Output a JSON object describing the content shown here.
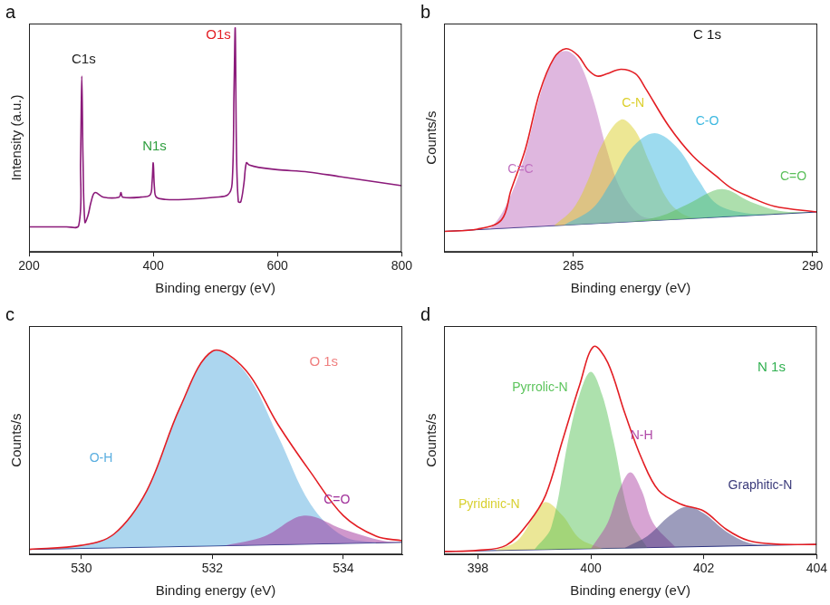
{
  "chart_data": [
    {
      "type": "line",
      "title": "a",
      "x_label": "Binding energy (eV)",
      "y_label": "Intensity (a.u.)",
      "xlim": [
        200,
        800
      ],
      "xticks": [
        200,
        400,
        600,
        800
      ],
      "ylim": [
        0,
        100
      ],
      "tick_labels": "x",
      "grid": false,
      "series": [
        {
          "type": "line",
          "color": "#8b1a7a",
          "x": [
            200,
            230,
            260,
            280,
            283,
            285,
            287,
            290,
            295,
            300,
            306,
            320,
            345,
            348,
            351,
            380,
            395,
            398,
            400,
            402,
            405,
            420,
            450,
            500,
            520,
            527,
            530,
            532,
            534,
            537,
            541,
            546,
            550,
            555,
            570,
            600,
            650,
            700,
            750,
            800
          ],
          "values": [
            11,
            11,
            11,
            11.5,
            40,
            77,
            40,
            13,
            16,
            22,
            26,
            24,
            24,
            26,
            24,
            24,
            25,
            30,
            39,
            28,
            24,
            23,
            23,
            24,
            25,
            30,
            70,
            98,
            45,
            22,
            22,
            30,
            39,
            38,
            37,
            36,
            35,
            33,
            31,
            29
          ]
        }
      ],
      "annotations": [
        {
          "text": "C1s",
          "x": 288,
          "y": 84,
          "color": "#222222"
        },
        {
          "text": "N1s",
          "x": 402,
          "y": 46,
          "color": "#2e9e3e"
        },
        {
          "text": "O1s",
          "x": 505,
          "y": 95,
          "color": "#e31e24"
        }
      ]
    },
    {
      "type": "line",
      "title": "b",
      "x_label": "Binding energy (eV)",
      "y_label": "Counts/s",
      "xlim": [
        282.3,
        290.1
      ],
      "xticks": [
        285,
        290
      ],
      "ylim": [
        0,
        100
      ],
      "tick_labels": "x",
      "grid": false,
      "series": [
        {
          "type": "line",
          "color": "#e31e24",
          "x": [
            282.3,
            283.0,
            283.5,
            283.7,
            284.0,
            284.3,
            284.6,
            284.85,
            285.1,
            285.3,
            285.5,
            285.7,
            286.0,
            286.3,
            286.5,
            287.0,
            287.5,
            288.0,
            288.3,
            288.7,
            289.2,
            290.1
          ],
          "values": [
            9,
            10,
            14,
            27,
            45,
            70,
            85,
            89,
            86,
            80,
            77,
            78,
            80,
            78,
            72,
            55,
            42,
            33,
            28,
            24,
            20,
            17.5
          ]
        },
        {
          "type": "area",
          "name": "C=C",
          "color": "#c070c0",
          "name_at": [
            283.9,
            36
          ],
          "x": [
            283.0,
            283.3,
            283.7,
            284.0,
            284.3,
            284.6,
            284.85,
            285.1,
            285.4,
            285.7,
            286.0,
            286.4,
            286.8,
            287.2
          ],
          "values": [
            9.8,
            11,
            25,
            43,
            68,
            85,
            88,
            84,
            68,
            45,
            27,
            16,
            14.5,
            14.3
          ]
        },
        {
          "type": "area",
          "name": "C-N",
          "color": "#dccf2a",
          "name_at": [
            286.25,
            65
          ],
          "x": [
            284.6,
            285.0,
            285.3,
            285.6,
            286.0,
            286.3,
            286.6,
            287.0,
            287.4,
            287.8
          ],
          "values": [
            11.5,
            19,
            31,
            47,
            58,
            53,
            39,
            22,
            15.5,
            15.0
          ]
        },
        {
          "type": "area",
          "name": "C-O",
          "color": "#3cb8e0",
          "name_at": [
            287.8,
            57
          ],
          "x": [
            284.8,
            285.4,
            285.8,
            286.2,
            286.7,
            287.2,
            287.6,
            288.0,
            288.6,
            289.2
          ],
          "values": [
            11.7,
            19,
            31,
            45,
            52,
            45,
            32,
            21,
            17,
            16.5
          ]
        },
        {
          "type": "area",
          "name": "C=O",
          "color": "#5cc05c",
          "name_at": [
            289.6,
            33
          ],
          "x": [
            286.2,
            286.8,
            287.4,
            288.1,
            288.7,
            289.3,
            290.0
          ],
          "values": [
            13.3,
            15.5,
            21,
            27.5,
            22,
            18,
            17.4
          ]
        }
      ],
      "baseline": {
        "color": "#283080",
        "x": [
          282.3,
          290.1
        ],
        "values": [
          9,
          17.5
        ]
      },
      "annotations": [
        {
          "text": "C 1s",
          "x": 287.8,
          "y": 95,
          "color": "#111111"
        }
      ]
    },
    {
      "type": "line",
      "title": "c",
      "x_label": "Binding energy (eV)",
      "y_label": "Counts/s",
      "xlim": [
        529.2,
        534.9
      ],
      "xticks": [
        530,
        532,
        534
      ],
      "ylim": [
        0,
        100
      ],
      "tick_labels": "x",
      "grid": false,
      "series": [
        {
          "type": "line",
          "color": "#e31e24",
          "x": [
            529.2,
            530.0,
            530.5,
            531.0,
            531.5,
            532.0,
            532.5,
            533.0,
            533.5,
            534.0,
            534.5,
            534.9
          ],
          "values": [
            2.2,
            4,
            9,
            28,
            64,
            89,
            81,
            57,
            36,
            17,
            8,
            6
          ]
        },
        {
          "type": "area",
          "name": "O-H",
          "color": "#5aaee0",
          "name_at": [
            530.3,
            42
          ],
          "x": [
            529.5,
            530.0,
            530.5,
            531.0,
            531.5,
            532.0,
            532.5,
            533.0,
            533.5,
            534.0,
            534.5
          ],
          "values": [
            2.4,
            4,
            9,
            28,
            64,
            89,
            80,
            52,
            22,
            8,
            5.1
          ]
        },
        {
          "type": "area",
          "name": "C=O",
          "color": "#a0309a",
          "name_at": [
            533.9,
            24
          ],
          "x": [
            532.2,
            532.8,
            533.4,
            534.0,
            534.6,
            534.9
          ],
          "values": [
            3.9,
            8,
            17,
            11,
            6,
            5.3
          ]
        }
      ],
      "baseline": {
        "color": "#283080",
        "x": [
          529.2,
          534.9
        ],
        "values": [
          2.2,
          5.3
        ]
      },
      "annotations": [
        {
          "text": "O 1s",
          "x": 533.7,
          "y": 84,
          "color": "#f08080"
        }
      ]
    },
    {
      "type": "line",
      "title": "d",
      "x_label": "Binding energy (eV)",
      "y_label": "Counts/s",
      "xlim": [
        397.4,
        404
      ],
      "xticks": [
        398,
        400,
        402,
        404
      ],
      "ylim": [
        0,
        100
      ],
      "tick_labels": "x",
      "grid": false,
      "series": [
        {
          "type": "line",
          "color": "#e31e24",
          "x": [
            397.4,
            398.0,
            398.5,
            398.9,
            399.2,
            399.5,
            399.8,
            400.05,
            400.3,
            400.6,
            400.9,
            401.2,
            401.6,
            402.0,
            402.4,
            402.8,
            403.3,
            404.0
          ],
          "values": [
            1.3,
            1.8,
            4,
            14,
            26,
            50,
            74,
            91,
            84,
            62,
            42,
            28,
            22,
            19,
            11,
            6,
            4.5,
            4.4
          ]
        },
        {
          "type": "area",
          "name": "Pyridinic-N",
          "color": "#d8d030",
          "name_at": [
            398.2,
            22
          ],
          "x": [
            398.3,
            398.7,
            399.0,
            399.2,
            399.5,
            399.8,
            400.2
          ],
          "values": [
            1.7,
            6,
            17,
            23,
            17,
            7,
            2.6
          ]
        },
        {
          "type": "area",
          "name": "Pyrrolic-N",
          "color": "#5cc45c",
          "name_at": [
            399.1,
            73
          ],
          "x": [
            399.0,
            399.3,
            399.6,
            399.8,
            400.0,
            400.2,
            400.4,
            400.7,
            401.0
          ],
          "values": [
            2.1,
            12,
            50,
            70,
            80,
            70,
            50,
            15,
            3.0
          ]
        },
        {
          "type": "area",
          "name": "N-H",
          "color": "#b04aa8",
          "name_at": [
            400.9,
            52
          ],
          "x": [
            400.0,
            400.3,
            400.5,
            400.7,
            400.9,
            401.1,
            401.5
          ],
          "values": [
            2.5,
            14,
            28,
            36,
            28,
            14,
            3.2
          ]
        },
        {
          "type": "area",
          "name": "Graphitic-N",
          "color": "#3a3a7a",
          "name_at": [
            403.0,
            30
          ],
          "x": [
            400.6,
            401.0,
            401.4,
            401.7,
            402.0,
            402.4,
            402.8,
            403.2
          ],
          "values": [
            2.9,
            8,
            17,
            21,
            18,
            10,
            5,
            4.0
          ]
        }
      ],
      "baseline": {
        "color": "#283080",
        "x": [
          397.4,
          404.0
        ],
        "values": [
          1.3,
          4.4
        ]
      },
      "annotations": [
        {
          "text": "N 1s",
          "x": 403.2,
          "y": 82,
          "color": "#30b050"
        }
      ]
    }
  ]
}
